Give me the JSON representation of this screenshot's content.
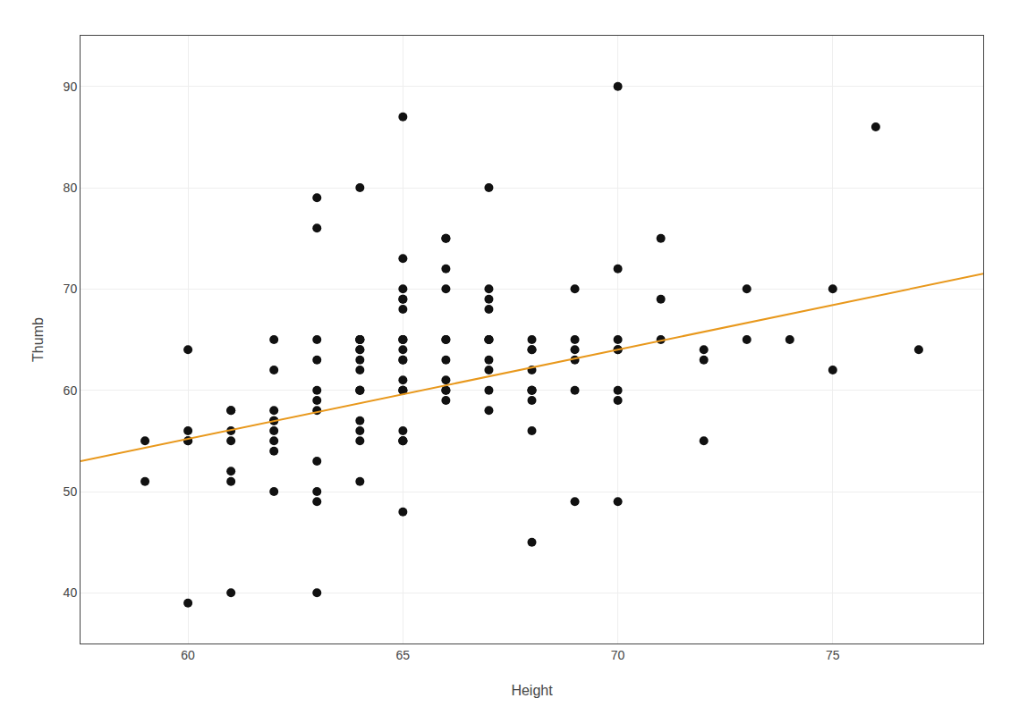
{
  "chart_data": {
    "type": "scatter",
    "xlabel": "Height",
    "ylabel": "Thumb",
    "xlim": [
      57.5,
      78.5
    ],
    "ylim": [
      35,
      95
    ],
    "xticks": [
      60,
      65,
      70,
      75
    ],
    "yticks": [
      40,
      50,
      60,
      70,
      80,
      90
    ],
    "grid": true,
    "series": [
      {
        "type": "scatter",
        "marker": "circle",
        "color": "#111111",
        "x": [
          59,
          59,
          60,
          60,
          60,
          60,
          60,
          61,
          61,
          61,
          61,
          61,
          61,
          61,
          62,
          62,
          62,
          62,
          62,
          62,
          62,
          62,
          62,
          63,
          63,
          63,
          63,
          63,
          63,
          63,
          63,
          63,
          63,
          63,
          64,
          64,
          64,
          64,
          64,
          64,
          64,
          64,
          64,
          64,
          64,
          64,
          64,
          64,
          64,
          64,
          65,
          65,
          65,
          65,
          65,
          65,
          65,
          65,
          65,
          65,
          65,
          65,
          65,
          65,
          65,
          65,
          65,
          65,
          65,
          65,
          65,
          66,
          66,
          66,
          66,
          66,
          66,
          66,
          66,
          66,
          66,
          66,
          67,
          67,
          67,
          67,
          67,
          67,
          67,
          67,
          67,
          67,
          67,
          68,
          68,
          68,
          68,
          68,
          68,
          68,
          68,
          68,
          68,
          69,
          69,
          69,
          69,
          69,
          69,
          70,
          70,
          70,
          70,
          70,
          70,
          70,
          70,
          71,
          71,
          71,
          72,
          72,
          72,
          73,
          73,
          74,
          75,
          75,
          76,
          77
        ],
        "values": [
          51,
          55,
          39,
          56,
          55,
          55,
          64,
          40,
          51,
          55,
          58,
          58,
          56,
          52,
          62,
          50,
          56,
          55,
          57,
          54,
          57,
          58,
          65,
          63,
          49,
          50,
          65,
          60,
          53,
          58,
          59,
          79,
          76,
          40,
          51,
          64,
          55,
          56,
          57,
          65,
          60,
          60,
          60,
          62,
          63,
          65,
          65,
          65,
          64,
          80,
          63,
          63,
          48,
          56,
          55,
          55,
          55,
          60,
          60,
          60,
          61,
          64,
          65,
          65,
          65,
          68,
          69,
          69,
          70,
          73,
          87,
          60,
          61,
          59,
          60,
          63,
          65,
          65,
          70,
          72,
          75,
          75,
          58,
          60,
          62,
          63,
          65,
          65,
          65,
          68,
          69,
          70,
          80,
          64,
          64,
          65,
          62,
          60,
          56,
          60,
          60,
          59,
          45,
          49,
          65,
          70,
          64,
          63,
          60,
          59,
          60,
          64,
          65,
          72,
          64,
          49,
          90,
          75,
          65,
          69,
          55,
          63,
          64,
          70,
          65,
          65,
          62,
          70,
          86,
          64
        ]
      },
      {
        "type": "line",
        "line_style": "solid",
        "color": "#E8981C",
        "x": [
          57.5,
          78.5
        ],
        "values": [
          53.0,
          71.5
        ]
      }
    ]
  }
}
